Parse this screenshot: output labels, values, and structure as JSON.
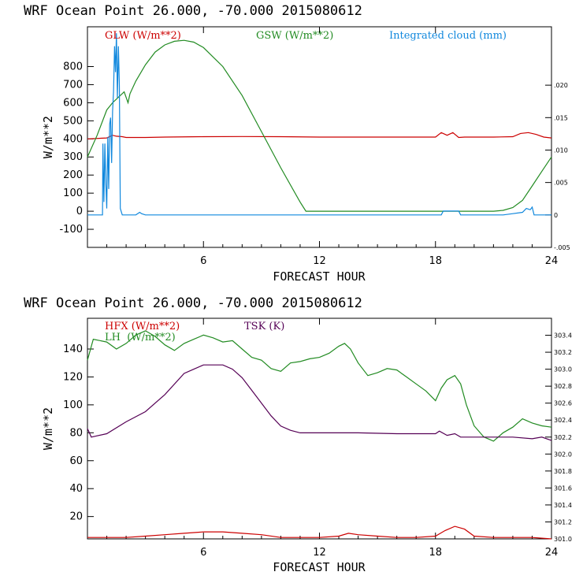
{
  "colors": {
    "red": "#cc0000",
    "green": "#228b22",
    "blue": "#1188dd",
    "purple": "#550055",
    "frame": "#000000"
  },
  "chart_data": [
    {
      "type": "line",
      "title": "WRF   Ocean Point   26.000, -70.000  2015080612",
      "xlabel": "FORECAST HOUR",
      "ylabel": "W/m**2",
      "xlim": [
        0,
        24
      ],
      "ylim": [
        -200,
        1020
      ],
      "xticks": [
        6,
        12,
        18,
        24
      ],
      "yticks": [
        -100,
        0,
        100,
        200,
        300,
        400,
        500,
        600,
        700,
        800
      ],
      "right_axis": {
        "ylim": [
          -0.005,
          0.029
        ],
        "ticks": [
          ".020",
          ".015",
          ".010",
          ".005",
          "0",
          "-.005"
        ],
        "values": [
          0.02,
          0.015,
          0.01,
          0.005,
          0,
          -0.005
        ]
      },
      "series": [
        {
          "name": "GLW (W/m**2)",
          "color": "red",
          "axis": "left",
          "x": [
            0,
            1,
            1.3,
            1.5,
            1.8,
            2,
            3,
            4,
            6,
            8,
            10,
            12,
            14,
            16,
            18,
            18.3,
            18.6,
            18.9,
            19.2,
            19.5,
            19.8,
            20,
            21,
            22,
            22.4,
            22.8,
            23.2,
            23.6,
            24
          ],
          "y": [
            400,
            405,
            420,
            415,
            412,
            408,
            408,
            410,
            412,
            413,
            412,
            410,
            410,
            410,
            410,
            435,
            420,
            435,
            408,
            410,
            410,
            410,
            410,
            412,
            430,
            435,
            425,
            410,
            405
          ]
        },
        {
          "name": "GSW (W/m**2)",
          "color": "green",
          "axis": "left",
          "x": [
            0,
            0.5,
            1,
            1.3,
            1.5,
            1.7,
            1.9,
            2.1,
            2.2,
            2.5,
            3,
            3.5,
            4,
            4.5,
            5,
            5.5,
            6,
            7,
            8,
            9,
            10,
            11,
            11.3,
            12,
            18,
            21,
            21.5,
            22,
            22.5,
            23,
            23.5,
            24
          ],
          "y": [
            300,
            420,
            560,
            600,
            620,
            640,
            660,
            600,
            650,
            720,
            810,
            880,
            920,
            940,
            945,
            935,
            905,
            800,
            640,
            440,
            240,
            50,
            0,
            0,
            0,
            0,
            5,
            20,
            60,
            140,
            220,
            300
          ]
        },
        {
          "name": "Integrated cloud (mm)",
          "color": "blue",
          "axis": "right",
          "x": [
            0,
            0.78,
            0.8,
            0.85,
            0.9,
            0.95,
            1.0,
            1.05,
            1.1,
            1.15,
            1.2,
            1.25,
            1.3,
            1.35,
            1.4,
            1.45,
            1.5,
            1.55,
            1.6,
            1.65,
            1.7,
            1.8,
            1.9,
            2.0,
            2.5,
            2.7,
            2.8,
            3.0,
            18.3,
            18.4,
            19.2,
            19.3,
            21.5,
            22,
            22.5,
            22.7,
            22.9,
            23.0,
            23.1,
            24
          ],
          "y": [
            0,
            0,
            0.011,
            0.002,
            0.011,
            0.005,
            0.001,
            0.012,
            0.004,
            0.014,
            0.015,
            0.008,
            0.016,
            0.019,
            0.026,
            0.022,
            0.028,
            0.018,
            0.026,
            0.02,
            0.001,
            0,
            0,
            0,
            0,
            0.0004,
            0.0002,
            0,
            0,
            0.0006,
            0.0006,
            0,
            0,
            0.0002,
            0.0004,
            0.001,
            0.0008,
            0.0012,
            0,
            0
          ]
        }
      ]
    },
    {
      "type": "line",
      "title": "WRF   Ocean Point   26.000, -70.000  2015080612",
      "xlabel": "FORECAST HOUR",
      "ylabel": "W/m**2",
      "xlim": [
        0,
        24
      ],
      "ylim": [
        4,
        162
      ],
      "xticks": [
        6,
        12,
        18,
        24
      ],
      "yticks": [
        20,
        40,
        60,
        80,
        100,
        120,
        140
      ],
      "right_axis": {
        "ylim": [
          301.0,
          303.6
        ],
        "ticks": [
          "303.4",
          "303.2",
          "303.0",
          "302.8",
          "302.6",
          "302.4",
          "302.2",
          "302.0",
          "301.8",
          "301.6",
          "301.4",
          "301.2",
          "301.0"
        ],
        "values": [
          303.4,
          303.2,
          303.0,
          302.8,
          302.6,
          302.4,
          302.2,
          302.0,
          301.8,
          301.6,
          301.4,
          301.2,
          301.0
        ]
      },
      "series": [
        {
          "name": "HFX (W/m**2)",
          "color": "red",
          "axis": "left",
          "x": [
            0,
            1,
            2,
            3,
            4,
            5,
            6,
            7,
            8,
            9,
            10,
            11,
            12,
            13,
            13.5,
            14,
            15,
            16,
            17,
            18,
            18.5,
            19,
            19.5,
            20,
            21,
            22,
            23,
            24
          ],
          "y": [
            5,
            5,
            5,
            6,
            7,
            8,
            9,
            9,
            8,
            7,
            5,
            5,
            5,
            6,
            8,
            7,
            6,
            5,
            5,
            6,
            10,
            13,
            11,
            6,
            5,
            5,
            5,
            4
          ]
        },
        {
          "name": "LH (W/m**2)",
          "color": "green",
          "axis": "left",
          "x": [
            0,
            0.3,
            1,
            1.5,
            2,
            2.5,
            3,
            3.5,
            4,
            4.5,
            5,
            5.5,
            6,
            6.5,
            7,
            7.5,
            8,
            8.5,
            9,
            9.5,
            10,
            10.5,
            11,
            11.5,
            12,
            12.5,
            13,
            13.3,
            13.6,
            14,
            14.5,
            15,
            15.5,
            16,
            16.5,
            17,
            17.5,
            18,
            18.3,
            18.6,
            19,
            19.3,
            19.6,
            20,
            20.5,
            21,
            21.5,
            22,
            22.5,
            23,
            23.5,
            24
          ],
          "y": [
            132,
            147,
            145,
            140,
            144,
            150,
            153,
            149,
            143,
            139,
            144,
            147,
            150,
            148,
            145,
            146,
            140,
            134,
            132,
            126,
            124,
            130,
            131,
            133,
            134,
            137,
            142,
            144,
            140,
            130,
            121,
            123,
            126,
            125,
            120,
            115,
            110,
            103,
            112,
            118,
            121,
            115,
            100,
            85,
            77,
            74,
            80,
            84,
            90,
            87,
            85,
            84
          ]
        },
        {
          "name": "TSK (K)",
          "color": "purple",
          "axis": "right",
          "x": [
            0,
            0.2,
            1,
            2,
            3,
            4,
            5,
            5.5,
            6,
            6.5,
            7,
            7.5,
            8,
            8.5,
            9,
            9.5,
            10,
            10.5,
            11,
            12,
            14,
            16,
            17,
            18,
            18.2,
            18.6,
            19,
            19.3,
            20,
            21,
            22,
            23,
            23.5,
            24
          ],
          "y": [
            302.3,
            302.2,
            302.24,
            302.38,
            302.5,
            302.7,
            302.95,
            303.0,
            303.05,
            303.05,
            303.05,
            303.0,
            302.9,
            302.75,
            302.6,
            302.45,
            302.33,
            302.28,
            302.25,
            302.25,
            302.25,
            302.24,
            302.24,
            302.24,
            302.27,
            302.22,
            302.24,
            302.2,
            302.2,
            302.2,
            302.2,
            302.18,
            302.2,
            302.16
          ]
        }
      ]
    }
  ],
  "legends": [
    [
      {
        "text": "GLW (W/m**2)",
        "color": "red"
      },
      {
        "text": "GSW (W/m**2)",
        "color": "green"
      },
      {
        "text": "Integrated cloud (mm)",
        "color": "blue"
      }
    ],
    [
      {
        "text": "HFX (W/m**2)",
        "color": "red"
      },
      {
        "text": "LH  (W/m**2)",
        "color": "green"
      },
      {
        "text": "TSK (K)",
        "color": "purple"
      }
    ]
  ]
}
